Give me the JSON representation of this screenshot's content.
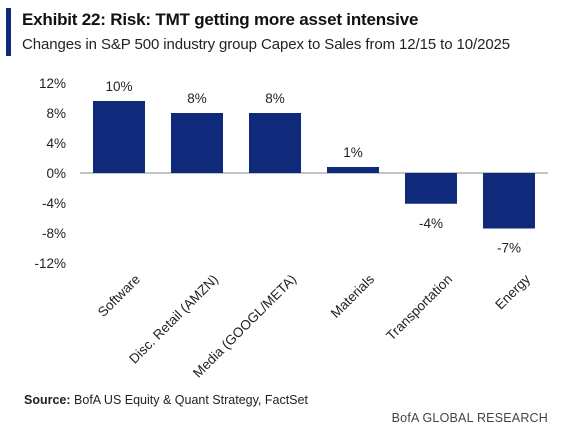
{
  "header": {
    "title": "Exhibit 22: Risk: TMT getting more asset intensive",
    "subtitle": "Changes in S&P 500 industry group Capex to Sales from 12/15 to 10/2025"
  },
  "footer": {
    "source_label": "Source:",
    "source_text": "BofA US Equity & Quant Strategy, FactSet",
    "brand": "BofA GLOBAL RESEARCH"
  },
  "colors": {
    "accent": "#0f2a7a",
    "bar": "#0f2a7a"
  },
  "chart_data": {
    "type": "bar",
    "categories": [
      "Software",
      "Disc. Retail (AMZN)",
      "Media (GOOGL/META)",
      "Materials",
      "Transportation",
      "Energy"
    ],
    "values": [
      9.6,
      8.0,
      8.0,
      0.8,
      -4.1,
      -7.4
    ],
    "data_labels": [
      "10%",
      "8%",
      "8%",
      "1%",
      "-4%",
      "-7%"
    ],
    "y_ticks": [
      12,
      8,
      4,
      0,
      -4,
      -8,
      -12
    ],
    "y_tick_labels": [
      "12%",
      "8%",
      "4%",
      "0%",
      "-4%",
      "-8%",
      "-12%"
    ],
    "ylim": [
      -12,
      12
    ],
    "grid": false,
    "legend": "none"
  }
}
